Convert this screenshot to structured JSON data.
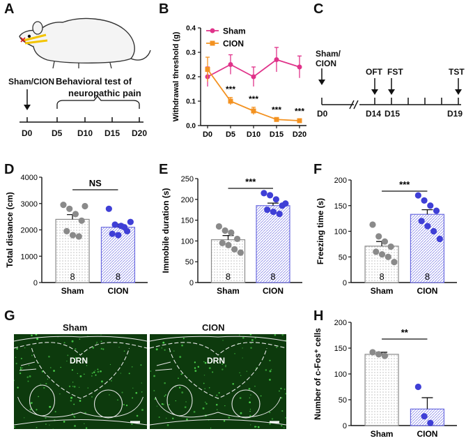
{
  "letters": {
    "A": "A",
    "B": "B",
    "C": "C",
    "D": "D",
    "E": "E",
    "F": "F",
    "G": "G",
    "H": "H"
  },
  "panelA": {
    "groups": "Sham/CION",
    "bracket_line1": "Behavioral test of",
    "bracket_line2": "neuropathic pain",
    "days": [
      "D0",
      "D5",
      "D10",
      "D15",
      "D20"
    ]
  },
  "panelC": {
    "groups_line1": "Sham/",
    "groups_line2": "CION",
    "tests": [
      "OFT",
      "FST",
      "TST"
    ],
    "days": [
      "D0",
      "D14",
      "D15",
      "D19"
    ]
  },
  "panelG": {
    "titles": [
      "Sham",
      "CION"
    ],
    "region": "DRN"
  },
  "colors": {
    "sham": "#e0338a",
    "cion": "#f39221",
    "bar_sham": "#8a8a8a",
    "bar_cion": "#3f3fd6",
    "tissue": "#0d3a0d"
  },
  "chart_data": [
    {
      "panel": "B",
      "type": "line",
      "title": "",
      "xlabel": "",
      "ylabel": "Withdrawal threshold (g)",
      "categories": [
        "D0",
        "D5",
        "D10",
        "D15",
        "D20"
      ],
      "ylim": [
        0,
        0.4
      ],
      "yticks": [
        "0.0",
        "0.1",
        "0.2",
        "0.3",
        "0.4"
      ],
      "series": [
        {
          "name": "Sham",
          "values": [
            0.2,
            0.25,
            0.2,
            0.27,
            0.24
          ],
          "errors": [
            0.04,
            0.04,
            0.04,
            0.05,
            0.045
          ]
        },
        {
          "name": "CION",
          "values": [
            0.23,
            0.1,
            0.06,
            0.025,
            0.02
          ],
          "errors": [
            0.05,
            0.015,
            0.015,
            0.005,
            0.005
          ]
        }
      ],
      "annotations": [
        "",
        "***",
        "***",
        "***",
        "***"
      ],
      "legend": "top-left"
    },
    {
      "panel": "D",
      "type": "bar",
      "ylabel": "Total distance (cm)",
      "categories": [
        "Sham",
        "CION"
      ],
      "values": [
        2400,
        2100
      ],
      "errors": [
        180,
        120
      ],
      "ylim": [
        0,
        4000
      ],
      "yticks": [
        "0",
        "1000",
        "2000",
        "3000",
        "4000"
      ],
      "n": [
        "8",
        "8"
      ],
      "points": [
        [
          2950,
          2800,
          2600,
          2350,
          1950,
          1800,
          1750,
          2900
        ],
        [
          2800,
          2200,
          2150,
          1950,
          1850,
          1800,
          2100,
          2300
        ]
      ],
      "significance": "NS"
    },
    {
      "panel": "E",
      "type": "bar",
      "ylabel": "Immobile duration (s)",
      "categories": [
        "Sham",
        "CION"
      ],
      "values": [
        103,
        185
      ],
      "errors": [
        10,
        6
      ],
      "ylim": [
        0,
        250
      ],
      "yticks": [
        "0",
        "50",
        "100",
        "150",
        "200",
        "250"
      ],
      "n": [
        "8",
        "8"
      ],
      "points": [
        [
          135,
          125,
          120,
          105,
          95,
          90,
          80,
          72
        ],
        [
          215,
          210,
          200,
          185,
          175,
          170,
          165,
          190
        ]
      ],
      "significance": "***"
    },
    {
      "panel": "F",
      "type": "bar",
      "ylabel": "Freezing time (s)",
      "categories": [
        "Sham",
        "CION"
      ],
      "values": [
        71,
        133
      ],
      "errors": [
        9,
        9
      ],
      "ylim": [
        0,
        200
      ],
      "yticks": [
        "0",
        "50",
        "100",
        "150",
        "200"
      ],
      "n": [
        "8",
        "8"
      ],
      "points": [
        [
          113,
          90,
          80,
          70,
          60,
          55,
          50,
          40
        ],
        [
          170,
          160,
          150,
          140,
          120,
          110,
          100,
          85
        ]
      ],
      "significance": "***"
    },
    {
      "panel": "H",
      "type": "bar",
      "ylabel": "Number of c-Fos⁺ cells",
      "categories": [
        "Sham",
        "CION"
      ],
      "values": [
        138,
        32
      ],
      "errors": [
        4,
        22
      ],
      "ylim": [
        0,
        200
      ],
      "yticks": [
        "0",
        "50",
        "100",
        "150",
        "200"
      ],
      "n": [],
      "points": [
        [
          142,
          138,
          135
        ],
        [
          75,
          18,
          5
        ]
      ],
      "significance": "**"
    }
  ]
}
